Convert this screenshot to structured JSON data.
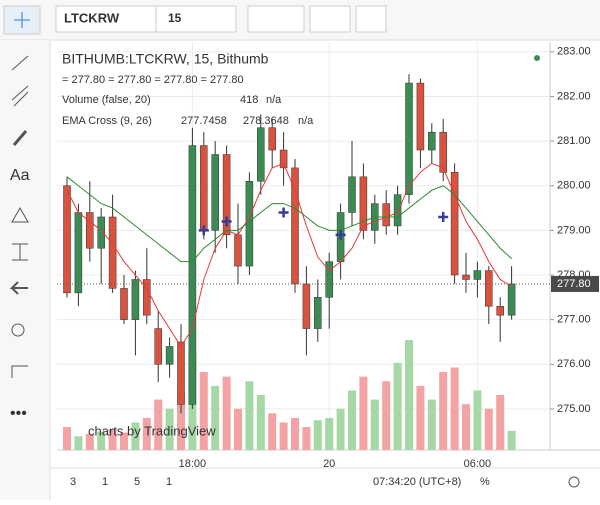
{
  "toolbar": {
    "symbol": "LTCKRW",
    "interval": "15"
  },
  "bottom_bar": {
    "ranges": [
      "3",
      "1",
      "5",
      "1"
    ],
    "clock": "07:34:20 (UTC+8)",
    "percent": "%"
  },
  "watermark": "charts by TradingView",
  "chart_data": {
    "type": "candlestick",
    "title": "BITHUMB:LTCKRW, 15, Bithumb",
    "ohlc_legend": "= 277.80 = 277.80 = 277.80 = 277.80",
    "volume_legend": {
      "name": "Volume (false, 20)",
      "value": "418",
      "extra": "n/a"
    },
    "ema_legend": {
      "name": "EMA Cross (9, 26)",
      "fast": "277.7458",
      "slow": "278.3648",
      "extra": "n/a"
    },
    "last_price": {
      "value": 277.8,
      "label": "277.80"
    },
    "categories": [
      null,
      null,
      null,
      null,
      null,
      null,
      null,
      null,
      null,
      null,
      null,
      "18:00",
      null,
      null,
      null,
      null,
      null,
      null,
      null,
      null,
      null,
      null,
      null,
      "20",
      null,
      null,
      null,
      null,
      null,
      null,
      null,
      null,
      null,
      null,
      null,
      null,
      "06:00",
      null,
      null,
      null
    ],
    "open": [
      280.0,
      277.6,
      279.4,
      278.6,
      279.3,
      277.7,
      277.0,
      277.9,
      276.8,
      276.0,
      276.5,
      275.1,
      280.9,
      279.0,
      280.7,
      278.9,
      278.2,
      280.1,
      281.3,
      280.8,
      280.4,
      277.8,
      276.8,
      277.5,
      278.3,
      279.4,
      280.2,
      279.0,
      279.6,
      279.1,
      279.8,
      282.3,
      280.8,
      281.2,
      280.3,
      278.0,
      277.9,
      278.1,
      277.3,
      277.1
    ],
    "high": [
      280.2,
      279.6,
      280.1,
      279.5,
      279.8,
      278.0,
      278.1,
      278.6,
      277.2,
      276.6,
      276.9,
      281.3,
      281.2,
      281.0,
      280.9,
      279.6,
      280.3,
      281.6,
      281.5,
      281.2,
      280.6,
      278.2,
      277.9,
      278.5,
      279.6,
      281.0,
      280.5,
      279.8,
      279.9,
      280.0,
      282.5,
      282.4,
      281.4,
      281.5,
      280.5,
      278.5,
      278.3,
      278.2,
      277.5,
      278.2
    ],
    "low": [
      277.5,
      277.3,
      278.3,
      277.8,
      277.6,
      276.9,
      276.2,
      276.9,
      275.6,
      275.7,
      274.9,
      275.0,
      278.8,
      278.5,
      278.6,
      277.8,
      278.0,
      279.8,
      280.4,
      280.0,
      277.6,
      276.2,
      276.5,
      276.8,
      277.9,
      279.1,
      278.8,
      278.7,
      278.9,
      278.9,
      279.6,
      280.4,
      280.5,
      280.1,
      277.8,
      277.6,
      277.5,
      276.9,
      276.5,
      277.0
    ],
    "close": [
      277.6,
      279.4,
      278.6,
      279.3,
      277.7,
      277.0,
      277.9,
      277.1,
      276.0,
      276.4,
      275.1,
      280.9,
      279.0,
      280.7,
      278.9,
      278.2,
      280.1,
      281.3,
      280.8,
      280.4,
      277.8,
      276.8,
      277.5,
      278.3,
      279.4,
      280.2,
      279.0,
      279.6,
      279.1,
      279.8,
      282.3,
      280.8,
      281.2,
      280.3,
      278.0,
      277.9,
      278.1,
      277.3,
      277.1,
      277.8
    ],
    "volume": [
      500,
      300,
      350,
      400,
      450,
      380,
      600,
      700,
      1100,
      900,
      1300,
      2100,
      1700,
      1400,
      1600,
      900,
      1500,
      1200,
      800,
      600,
      700,
      500,
      650,
      700,
      900,
      1300,
      1600,
      1100,
      1500,
      1900,
      2400,
      1400,
      1100,
      1700,
      1800,
      1000,
      1300,
      900,
      1200,
      418
    ],
    "ema_fast": [
      279.9,
      279.4,
      279.2,
      279.0,
      278.7,
      278.3,
      278.0,
      277.7,
      277.2,
      276.8,
      276.4,
      276.8,
      277.9,
      278.6,
      279.0,
      278.9,
      279.3,
      279.9,
      280.4,
      280.5,
      279.9,
      279.1,
      278.4,
      278.1,
      278.3,
      278.6,
      279.1,
      279.2,
      279.3,
      279.4,
      280.0,
      280.3,
      280.5,
      280.4,
      279.8,
      279.2,
      278.8,
      278.3,
      277.9,
      277.7458
    ],
    "ema_slow": [
      280.2,
      280.0,
      279.8,
      279.6,
      279.5,
      279.3,
      279.1,
      278.9,
      278.7,
      278.5,
      278.3,
      278.3,
      278.6,
      278.8,
      279.0,
      279.0,
      279.2,
      279.4,
      279.6,
      279.6,
      279.5,
      279.3,
      279.1,
      279.0,
      279.0,
      279.1,
      279.2,
      279.3,
      279.3,
      279.3,
      279.5,
      279.7,
      279.9,
      280.0,
      279.8,
      279.5,
      279.2,
      278.9,
      278.6,
      278.3648
    ],
    "cross_points": [
      {
        "x": 12,
        "y": 279.0
      },
      {
        "x": 14,
        "y": 279.2
      },
      {
        "x": 19,
        "y": 279.4
      },
      {
        "x": 24,
        "y": 278.9
      },
      {
        "x": 33,
        "y": 279.3
      }
    ],
    "up_color": "#3c8a54",
    "down_color": "#d8523e",
    "volume_up_color": "#a6d8a6",
    "volume_down_color": "#f3a3a3",
    "ema_fast_color": "#e53935",
    "ema_slow_color": "#2e8b2e",
    "cross_color": "#3a3a9a",
    "ylim": [
      274.08,
      283.22
    ],
    "yticks": [
      {
        "value": 275,
        "label": "275.00"
      },
      {
        "value": 276,
        "label": "276.00"
      },
      {
        "value": 277,
        "label": "277.00"
      },
      {
        "value": 278,
        "label": "278.00"
      },
      {
        "value": 279,
        "label": "279.00"
      },
      {
        "value": 280,
        "label": "280.00"
      },
      {
        "value": 281,
        "label": "281.00"
      },
      {
        "value": 282,
        "label": "282.00"
      },
      {
        "value": 283,
        "label": "283.00"
      }
    ],
    "grid": true
  }
}
